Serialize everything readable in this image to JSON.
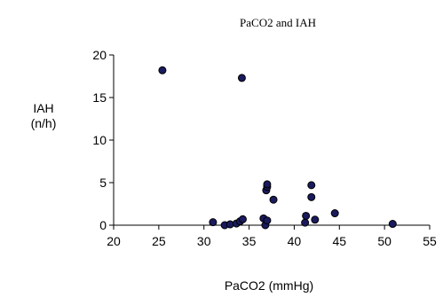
{
  "chart_data": {
    "type": "scatter",
    "title": "PaCO2 and  IAH",
    "xlabel": "PaCO2 (mmHg)",
    "ylabel_lines": [
      "IAH",
      "(n/h)"
    ],
    "xlim": [
      20,
      55
    ],
    "ylim": [
      0,
      20
    ],
    "x_ticks": [
      20,
      25,
      30,
      35,
      40,
      45,
      50,
      55
    ],
    "y_ticks": [
      0,
      5,
      10,
      15,
      20
    ],
    "grid": false,
    "marker_color": "#1a1a5e",
    "points": [
      {
        "x": 25.4,
        "y": 18.2
      },
      {
        "x": 34.2,
        "y": 17.3
      },
      {
        "x": 31.0,
        "y": 0.35
      },
      {
        "x": 32.3,
        "y": 0.0
      },
      {
        "x": 32.9,
        "y": 0.1
      },
      {
        "x": 33.6,
        "y": 0.2
      },
      {
        "x": 34.0,
        "y": 0.45
      },
      {
        "x": 34.3,
        "y": 0.7
      },
      {
        "x": 36.6,
        "y": 0.8
      },
      {
        "x": 36.8,
        "y": 0.0
      },
      {
        "x": 37.0,
        "y": 0.55
      },
      {
        "x": 36.9,
        "y": 4.1
      },
      {
        "x": 37.0,
        "y": 4.5
      },
      {
        "x": 37.0,
        "y": 4.8
      },
      {
        "x": 37.7,
        "y": 3.0
      },
      {
        "x": 41.2,
        "y": 0.3
      },
      {
        "x": 41.3,
        "y": 1.1
      },
      {
        "x": 41.9,
        "y": 4.7
      },
      {
        "x": 41.9,
        "y": 3.3
      },
      {
        "x": 42.3,
        "y": 0.65
      },
      {
        "x": 44.5,
        "y": 1.4
      },
      {
        "x": 50.9,
        "y": 0.15
      }
    ]
  }
}
